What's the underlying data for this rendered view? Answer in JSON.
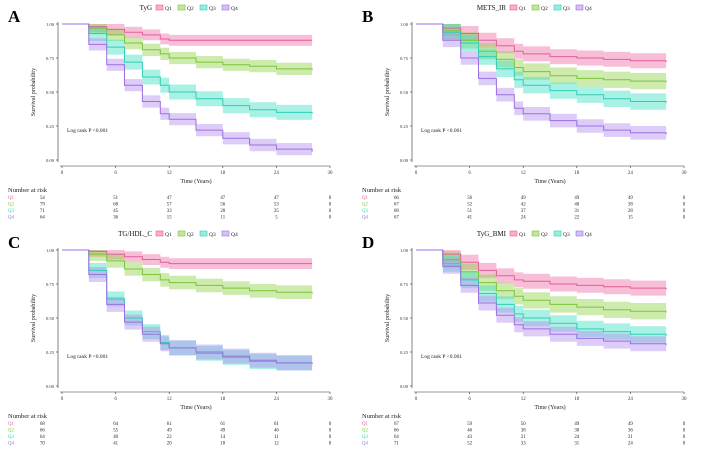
{
  "figure": {
    "x_label": "Time (Years)",
    "y_label": "Survival probability",
    "risk_title": "Number at risk",
    "logrank_text": "Log rank P <0.001",
    "legend_groups": [
      "Q1",
      "Q2",
      "Q3",
      "Q4"
    ],
    "colors": {
      "Q1": "#f26ea6",
      "Q2": "#8fd24a",
      "Q3": "#3fe0c5",
      "Q4": "#b58ef0"
    },
    "line_colors": {
      "Q1": "#e0609a",
      "Q2": "#7cc43a",
      "Q3": "#32cdb4",
      "Q4": "#9a6fe0"
    }
  },
  "chart_data": [
    {
      "panel": "A",
      "type": "line",
      "title": "TyG",
      "xlim": [
        0,
        30
      ],
      "ylim": [
        0,
        1
      ],
      "xticks": [
        0,
        6,
        12,
        18,
        24,
        30
      ],
      "yticks": [
        "0.00",
        "0.25",
        "0.50",
        "0.75",
        "1.00"
      ],
      "series": [
        {
          "name": "Q1",
          "x": [
            0,
            2,
            3,
            5,
            7,
            9,
            11,
            12,
            15,
            18,
            21,
            24,
            28
          ],
          "y": [
            1.0,
            1.0,
            0.98,
            0.96,
            0.94,
            0.92,
            0.89,
            0.88,
            0.88,
            0.88,
            0.88,
            0.88,
            0.88
          ],
          "ci_width": 0.08
        },
        {
          "name": "Q2",
          "x": [
            0,
            2,
            3,
            5,
            7,
            9,
            11,
            12,
            15,
            18,
            21,
            24,
            28
          ],
          "y": [
            1.0,
            1.0,
            0.97,
            0.92,
            0.86,
            0.81,
            0.78,
            0.75,
            0.72,
            0.7,
            0.69,
            0.67,
            0.66
          ],
          "ci_width": 0.09
        },
        {
          "name": "Q3",
          "x": [
            0,
            2,
            3,
            5,
            7,
            9,
            11,
            12,
            15,
            18,
            21,
            24,
            28
          ],
          "y": [
            1.0,
            1.0,
            0.93,
            0.83,
            0.72,
            0.61,
            0.55,
            0.5,
            0.45,
            0.4,
            0.37,
            0.35,
            0.34
          ],
          "ci_width": 0.11
        },
        {
          "name": "Q4",
          "x": [
            0,
            2,
            3,
            5,
            7,
            9,
            11,
            12,
            15,
            18,
            21,
            24,
            28
          ],
          "y": [
            1.0,
            1.0,
            0.85,
            0.7,
            0.55,
            0.43,
            0.34,
            0.3,
            0.22,
            0.16,
            0.11,
            0.08,
            0.06
          ],
          "ci_width": 0.09
        }
      ],
      "risk_table": {
        "Q1": [
          54,
          51,
          47,
          47,
          47,
          0
        ],
        "Q2": [
          79,
          68,
          57,
          56,
          53,
          0
        ],
        "Q3": [
          71,
          45,
          33,
          28,
          25,
          0
        ],
        "Q4": [
          64,
          36,
          15,
          11,
          5,
          0
        ]
      }
    },
    {
      "panel": "B",
      "type": "line",
      "title": "METS_IR",
      "xlim": [
        0,
        30
      ],
      "ylim": [
        0,
        1
      ],
      "xticks": [
        0,
        6,
        12,
        18,
        24,
        30
      ],
      "yticks": [
        "0.00",
        "0.25",
        "0.50",
        "0.75",
        "1.00"
      ],
      "series": [
        {
          "name": "Q1",
          "x": [
            0,
            2,
            3,
            5,
            7,
            9,
            11,
            12,
            15,
            18,
            21,
            24,
            28
          ],
          "y": [
            1.0,
            1.0,
            0.97,
            0.93,
            0.88,
            0.84,
            0.8,
            0.78,
            0.76,
            0.75,
            0.74,
            0.73,
            0.72
          ],
          "ci_width": 0.11
        },
        {
          "name": "Q2",
          "x": [
            0,
            2,
            3,
            5,
            7,
            9,
            11,
            12,
            15,
            18,
            21,
            24,
            28
          ],
          "y": [
            1.0,
            1.0,
            0.95,
            0.88,
            0.8,
            0.74,
            0.68,
            0.65,
            0.62,
            0.6,
            0.59,
            0.58,
            0.57
          ],
          "ci_width": 0.12
        },
        {
          "name": "Q3",
          "x": [
            0,
            2,
            3,
            5,
            7,
            9,
            11,
            12,
            15,
            18,
            21,
            24,
            28
          ],
          "y": [
            1.0,
            1.0,
            0.94,
            0.86,
            0.76,
            0.67,
            0.59,
            0.55,
            0.51,
            0.48,
            0.45,
            0.43,
            0.42
          ],
          "ci_width": 0.12
        },
        {
          "name": "Q4",
          "x": [
            0,
            2,
            3,
            5,
            7,
            9,
            11,
            12,
            15,
            18,
            21,
            24,
            28
          ],
          "y": [
            1.0,
            1.0,
            0.88,
            0.75,
            0.6,
            0.48,
            0.38,
            0.34,
            0.29,
            0.25,
            0.22,
            0.2,
            0.19
          ],
          "ci_width": 0.1
        }
      ],
      "risk_table": {
        "Q1": [
          66,
          56,
          49,
          49,
          49,
          0
        ],
        "Q2": [
          67,
          52,
          42,
          40,
          38,
          0
        ],
        "Q3": [
          68,
          51,
          37,
          31,
          28,
          0
        ],
        "Q4": [
          67,
          41,
          24,
          22,
          15,
          0
        ]
      }
    },
    {
      "panel": "C",
      "type": "line",
      "title": "TG/HDL_C",
      "xlim": [
        0,
        30
      ],
      "ylim": [
        0,
        1
      ],
      "xticks": [
        0,
        6,
        12,
        18,
        24,
        30
      ],
      "yticks": [
        "0.00",
        "0.25",
        "0.50",
        "0.75",
        "1.00"
      ],
      "series": [
        {
          "name": "Q1",
          "x": [
            0,
            2,
            3,
            5,
            7,
            9,
            11,
            12,
            15,
            18,
            21,
            24,
            28
          ],
          "y": [
            1.0,
            1.0,
            0.99,
            0.97,
            0.95,
            0.93,
            0.91,
            0.9,
            0.9,
            0.9,
            0.9,
            0.9,
            0.9
          ],
          "ci_width": 0.08
        },
        {
          "name": "Q2",
          "x": [
            0,
            2,
            3,
            5,
            7,
            9,
            11,
            12,
            15,
            18,
            21,
            24,
            28
          ],
          "y": [
            1.0,
            1.0,
            0.97,
            0.92,
            0.86,
            0.82,
            0.78,
            0.76,
            0.74,
            0.72,
            0.7,
            0.69,
            0.68
          ],
          "ci_width": 0.1
        },
        {
          "name": "Q3",
          "x": [
            0,
            2,
            3,
            5,
            7,
            9,
            11,
            12,
            15,
            18,
            21,
            24,
            28
          ],
          "y": [
            1.0,
            1.0,
            0.85,
            0.64,
            0.5,
            0.4,
            0.32,
            0.28,
            0.24,
            0.21,
            0.18,
            0.17,
            0.17
          ],
          "ci_width": 0.11
        },
        {
          "name": "Q4",
          "x": [
            0,
            2,
            3,
            5,
            7,
            9,
            11,
            12,
            15,
            18,
            21,
            24,
            28
          ],
          "y": [
            1.0,
            1.0,
            0.82,
            0.6,
            0.47,
            0.38,
            0.31,
            0.28,
            0.25,
            0.22,
            0.19,
            0.17,
            0.16
          ],
          "ci_width": 0.11
        }
      ],
      "risk_table": {
        "Q1": [
          68,
          64,
          61,
          61,
          61,
          0
        ],
        "Q2": [
          66,
          55,
          49,
          49,
          46,
          0
        ],
        "Q3": [
          64,
          40,
          22,
          14,
          11,
          0
        ],
        "Q4": [
          70,
          41,
          20,
          18,
          12,
          0
        ]
      }
    },
    {
      "panel": "D",
      "type": "line",
      "title": "TyG_BMI",
      "xlim": [
        0,
        30
      ],
      "ylim": [
        0,
        1
      ],
      "xticks": [
        0,
        6,
        12,
        18,
        24,
        30
      ],
      "yticks": [
        "0.00",
        "0.25",
        "0.50",
        "0.75",
        "1.00"
      ],
      "series": [
        {
          "name": "Q1",
          "x": [
            0,
            2,
            3,
            5,
            7,
            9,
            11,
            12,
            15,
            18,
            21,
            24,
            28
          ],
          "y": [
            1.0,
            1.0,
            0.97,
            0.91,
            0.85,
            0.81,
            0.78,
            0.77,
            0.75,
            0.74,
            0.73,
            0.72,
            0.71
          ],
          "ci_width": 0.11
        },
        {
          "name": "Q2",
          "x": [
            0,
            2,
            3,
            5,
            7,
            9,
            11,
            12,
            15,
            18,
            21,
            24,
            28
          ],
          "y": [
            1.0,
            1.0,
            0.93,
            0.84,
            0.76,
            0.7,
            0.66,
            0.63,
            0.6,
            0.58,
            0.56,
            0.55,
            0.54
          ],
          "ci_width": 0.12
        },
        {
          "name": "Q3",
          "x": [
            0,
            2,
            3,
            5,
            7,
            9,
            11,
            12,
            15,
            18,
            21,
            24,
            28
          ],
          "y": [
            1.0,
            1.0,
            0.9,
            0.78,
            0.68,
            0.6,
            0.53,
            0.5,
            0.46,
            0.42,
            0.4,
            0.38,
            0.37
          ],
          "ci_width": 0.12
        },
        {
          "name": "Q4",
          "x": [
            0,
            2,
            3,
            5,
            7,
            9,
            11,
            12,
            15,
            18,
            21,
            24,
            28
          ],
          "y": [
            1.0,
            1.0,
            0.88,
            0.74,
            0.61,
            0.52,
            0.45,
            0.42,
            0.38,
            0.35,
            0.33,
            0.31,
            0.3
          ],
          "ci_width": 0.11
        }
      ],
      "risk_table": {
        "Q1": [
          67,
          59,
          50,
          49,
          49,
          0
        ],
        "Q2": [
          66,
          46,
          38,
          38,
          36,
          0
        ],
        "Q3": [
          64,
          43,
          31,
          24,
          21,
          0
        ],
        "Q4": [
          71,
          52,
          33,
          31,
          24,
          0
        ]
      }
    }
  ]
}
